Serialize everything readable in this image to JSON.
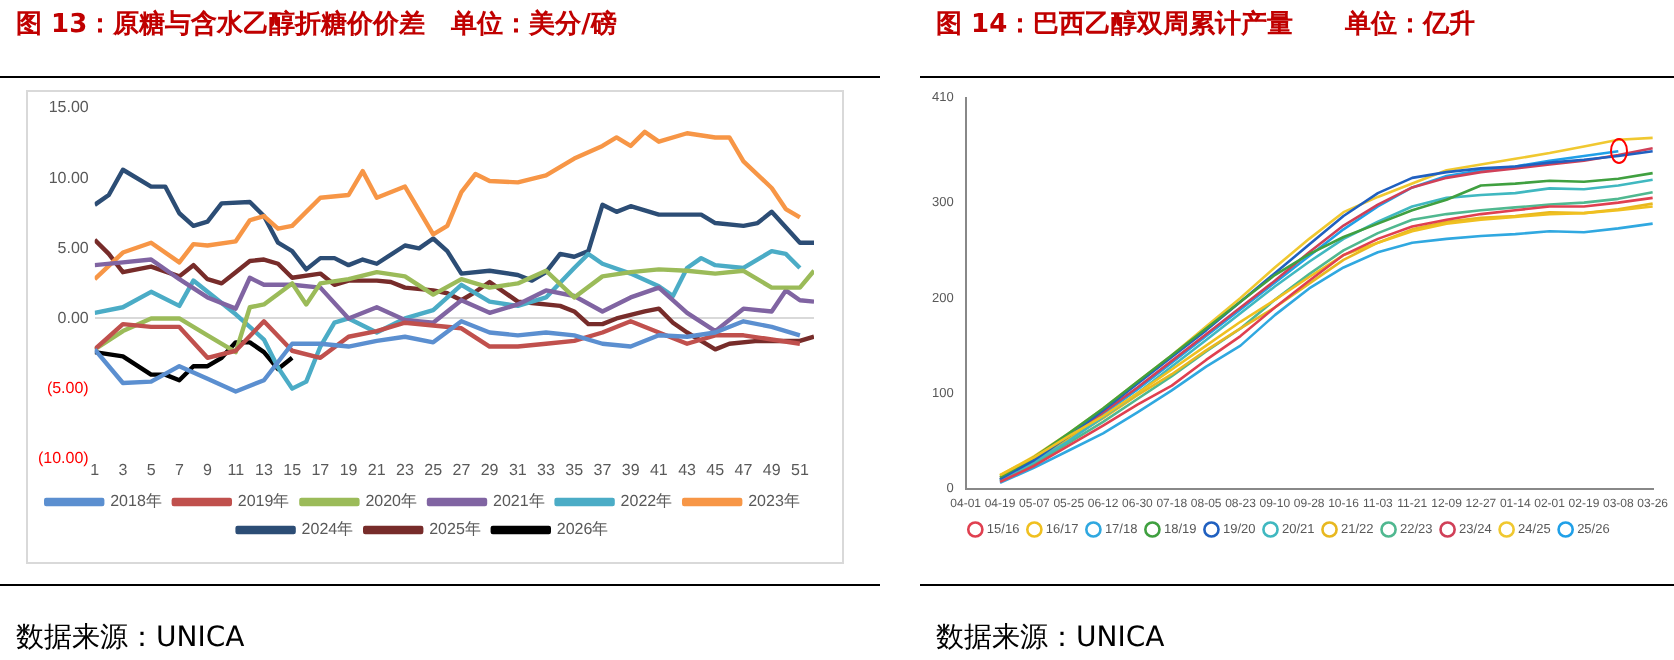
{
  "chart_data": [
    {
      "type": "line",
      "title": "图 13：原糖与含水乙醇折糖价价差　单位：美分/磅",
      "annotations": [
        "数据来源：UNICA"
      ],
      "xlim": [
        1,
        52
      ],
      "xticks": [
        1,
        3,
        5,
        7,
        9,
        11,
        13,
        15,
        17,
        19,
        21,
        23,
        25,
        27,
        29,
        31,
        33,
        35,
        37,
        39,
        41,
        43,
        45,
        47,
        49,
        51
      ],
      "ylim": [
        -10,
        15
      ],
      "yticks": [
        {
          "value": -10,
          "label": "(10.00)"
        },
        {
          "value": -5,
          "label": "(5.00)"
        },
        {
          "value": 0,
          "label": "0.00"
        },
        {
          "value": 5,
          "label": "5.00"
        },
        {
          "value": 10,
          "label": "10.00"
        },
        {
          "value": 15,
          "label": "15.00"
        }
      ],
      "legend": "bottom",
      "marker": "none",
      "series": [
        {
          "name": "2018年",
          "color": "#5b8fd0",
          "x": [
            1,
            3,
            5,
            7,
            9,
            11,
            13,
            15,
            17,
            19,
            21,
            23,
            25,
            27,
            29,
            31,
            33,
            35,
            37,
            39,
            41,
            43,
            45,
            47,
            49,
            51
          ],
          "values": [
            -2.2,
            -4.6,
            -4.5,
            -3.4,
            -4.3,
            -5.2,
            -4.4,
            -1.8,
            -1.8,
            -2.0,
            -1.6,
            -1.3,
            -1.7,
            -0.2,
            -1.0,
            -1.2,
            -1.0,
            -1.2,
            -1.8,
            -2.0,
            -1.2,
            -1.3,
            -1.0,
            -0.2,
            -0.6,
            -1.2
          ]
        },
        {
          "name": "2019年",
          "color": "#c0504d",
          "x": [
            1,
            3,
            5,
            7,
            9,
            11,
            13,
            15,
            17,
            19,
            21,
            23,
            25,
            27,
            29,
            31,
            33,
            35,
            37,
            39,
            41,
            43,
            45,
            47,
            49,
            51
          ],
          "values": [
            -2.2,
            -0.4,
            -0.6,
            -0.6,
            -2.8,
            -2.3,
            -0.2,
            -2.3,
            -2.8,
            -1.3,
            -0.9,
            -0.3,
            -0.5,
            -0.7,
            -2.0,
            -2.0,
            -1.8,
            -1.6,
            -1.0,
            -0.2,
            -1.0,
            -1.8,
            -1.2,
            -1.2,
            -1.5,
            -1.8
          ]
        },
        {
          "name": "2020年",
          "color": "#9bbb59",
          "x": [
            1,
            3,
            5,
            7,
            9,
            11,
            12,
            13,
            15,
            16,
            17,
            19,
            21,
            23,
            25,
            27,
            29,
            31,
            33,
            35,
            37,
            39,
            41,
            43,
            45,
            47,
            49,
            51,
            52
          ],
          "values": [
            -2.2,
            -0.9,
            0,
            0,
            -1.2,
            -2.4,
            0.8,
            1.0,
            2.5,
            1.0,
            2.5,
            2.8,
            3.3,
            3.0,
            1.7,
            2.8,
            2.2,
            2.5,
            3.4,
            1.5,
            3.0,
            3.3,
            3.5,
            3.4,
            3.2,
            3.4,
            2.2,
            2.2,
            3.4
          ]
        },
        {
          "name": "2021年",
          "color": "#8064a2",
          "x": [
            1,
            3,
            5,
            7,
            9,
            11,
            12,
            13,
            15,
            17,
            19,
            21,
            23,
            25,
            27,
            29,
            31,
            33,
            35,
            37,
            39,
            41,
            43,
            45,
            47,
            49,
            50,
            51,
            52
          ],
          "values": [
            3.8,
            4.0,
            4.2,
            2.8,
            1.5,
            0.7,
            2.9,
            2.4,
            2.4,
            2.2,
            0.0,
            0.8,
            -0.1,
            -0.3,
            1.3,
            0.4,
            1.0,
            2.0,
            1.6,
            0.5,
            1.5,
            2.2,
            0.4,
            -0.9,
            0.7,
            0.5,
            2.0,
            1.3,
            1.2
          ]
        },
        {
          "name": "2022年",
          "color": "#4bacc6",
          "x": [
            1,
            3,
            5,
            7,
            8,
            9,
            11,
            13,
            14,
            15,
            16,
            17,
            18,
            19,
            21,
            23,
            25,
            27,
            29,
            31,
            33,
            35,
            36,
            37,
            39,
            41,
            42,
            43,
            44,
            45,
            47,
            49,
            50,
            51
          ],
          "values": [
            0.4,
            0.8,
            1.9,
            0.9,
            2.7,
            1.9,
            0.3,
            -1.5,
            -3.5,
            -5.0,
            -4.5,
            -2.0,
            -0.3,
            0.0,
            -1.0,
            0.0,
            0.6,
            2.4,
            1.2,
            0.9,
            1.5,
            3.6,
            4.6,
            3.9,
            3.2,
            2.3,
            1.6,
            3.6,
            4.3,
            3.8,
            3.6,
            4.8,
            4.6,
            3.6
          ]
        },
        {
          "name": "2023年",
          "color": "#f79646",
          "x": [
            1,
            3,
            5,
            7,
            8,
            9,
            11,
            12,
            13,
            14,
            15,
            17,
            19,
            20,
            21,
            23,
            25,
            26,
            27,
            28,
            29,
            31,
            33,
            35,
            37,
            38,
            39,
            40,
            41,
            43,
            45,
            46,
            47,
            49,
            50,
            51
          ],
          "values": [
            2.8,
            4.7,
            5.4,
            4.0,
            5.3,
            5.2,
            5.5,
            7.0,
            7.3,
            6.4,
            6.6,
            8.6,
            8.8,
            10.5,
            8.6,
            9.4,
            6.0,
            6.6,
            9.0,
            10.3,
            9.8,
            9.7,
            10.2,
            11.4,
            12.3,
            12.9,
            12.3,
            13.3,
            12.6,
            13.2,
            12.9,
            12.9,
            11.2,
            9.3,
            7.8,
            7.2
          ]
        },
        {
          "name": "2024年",
          "color": "#2c4d75",
          "x": [
            1,
            2,
            3,
            5,
            6,
            7,
            8,
            9,
            10,
            12,
            13,
            14,
            15,
            16,
            17,
            18,
            19,
            20,
            21,
            23,
            24,
            25,
            26,
            27,
            29,
            31,
            32,
            33,
            34,
            35,
            36,
            37,
            38,
            39,
            41,
            44,
            45,
            47,
            48,
            49,
            50,
            51,
            52
          ],
          "values": [
            8.1,
            8.8,
            10.6,
            9.4,
            9.4,
            7.5,
            6.6,
            6.9,
            8.2,
            8.3,
            7.3,
            5.4,
            4.8,
            3.5,
            4.3,
            4.3,
            3.8,
            4.2,
            3.9,
            5.2,
            5.0,
            5.7,
            4.8,
            3.2,
            3.4,
            3.1,
            2.7,
            3.3,
            4.6,
            4.4,
            4.8,
            8.1,
            7.6,
            8.0,
            7.4,
            7.4,
            6.8,
            6.6,
            6.8,
            7.6,
            6.5,
            5.4,
            5.4
          ]
        },
        {
          "name": "2025年",
          "color": "#772c2a",
          "x": [
            1,
            2,
            3,
            5,
            7,
            8,
            9,
            10,
            11,
            12,
            13,
            14,
            15,
            17,
            18,
            19,
            21,
            22,
            23,
            25,
            26,
            27,
            28,
            29,
            31,
            32,
            34,
            35,
            36,
            37,
            38,
            40,
            41,
            42,
            43,
            44,
            45,
            46,
            48,
            50,
            51,
            52
          ],
          "values": [
            5.6,
            4.6,
            3.3,
            3.7,
            3.0,
            3.8,
            2.8,
            2.5,
            3.3,
            4.1,
            4.2,
            3.9,
            2.9,
            3.2,
            2.4,
            2.7,
            2.7,
            2.6,
            2.2,
            2.0,
            1.8,
            1.3,
            1.9,
            2.6,
            1.2,
            1.1,
            0.9,
            0.5,
            -0.4,
            -0.4,
            0.0,
            0.5,
            0.7,
            -0.3,
            -1.0,
            -1.6,
            -2.2,
            -1.8,
            -1.6,
            -1.6,
            -1.6,
            -1.3
          ]
        },
        {
          "name": "2026年",
          "color": "#000000",
          "x": [
            1,
            3,
            5,
            6,
            7,
            8,
            9,
            10,
            11,
            12,
            13,
            14,
            15
          ],
          "values": [
            -2.4,
            -2.7,
            -4.0,
            -4.0,
            -4.4,
            -3.4,
            -3.4,
            -2.8,
            -1.7,
            -1.7,
            -2.4,
            -3.6,
            -2.8
          ]
        }
      ]
    },
    {
      "type": "line",
      "title": "图 14：巴西乙醇双周累计产量　　单位：亿升",
      "annotations": [
        "数据来源：UNICA"
      ],
      "categories": [
        "04-01",
        "04-19",
        "05-07",
        "05-25",
        "06-12",
        "06-30",
        "07-18",
        "08-05",
        "08-23",
        "09-10",
        "09-28",
        "10-16",
        "11-03",
        "11-21",
        "12-09",
        "12-27",
        "01-14",
        "02-01",
        "02-19",
        "03-08",
        "03-26"
      ],
      "ylim": [
        0,
        410
      ],
      "yticks": [
        0,
        100,
        200,
        300,
        410
      ],
      "legend": "bottom",
      "marker": "none",
      "series": [
        {
          "name": "15/16",
          "color": "#e04050",
          "values": [
            null,
            7,
            24,
            45,
            66,
            88,
            108,
            135,
            160,
            190,
            218,
            245,
            262,
            275,
            282,
            288,
            292,
            296,
            296,
            300,
            305
          ]
        },
        {
          "name": "16/17",
          "color": "#f0c020",
          "values": [
            null,
            14,
            33,
            55,
            76,
            100,
            125,
            150,
            175,
            198,
            222,
            245,
            258,
            270,
            278,
            282,
            285,
            288,
            289,
            292,
            296
          ]
        },
        {
          "name": "17/18",
          "color": "#30a8e0",
          "values": [
            null,
            6,
            22,
            40,
            58,
            80,
            103,
            128,
            150,
            182,
            210,
            232,
            248,
            258,
            262,
            265,
            267,
            270,
            269,
            273,
            278
          ]
        },
        {
          "name": "18/19",
          "color": "#40a040",
          "values": [
            null,
            12,
            33,
            58,
            84,
            112,
            140,
            168,
            196,
            224,
            246,
            264,
            278,
            292,
            303,
            318,
            320,
            323,
            322,
            325,
            331
          ]
        },
        {
          "name": "19/20",
          "color": "#2060c0",
          "values": [
            null,
            10,
            30,
            55,
            82,
            110,
            138,
            166,
            196,
            226,
            256,
            286,
            310,
            326,
            332,
            336,
            338,
            342,
            345,
            349,
            354
          ]
        },
        {
          "name": "20/21",
          "color": "#40b8c0",
          "values": [
            null,
            8,
            28,
            50,
            75,
            100,
            128,
            156,
            184,
            212,
            238,
            262,
            280,
            296,
            305,
            308,
            310,
            315,
            314,
            318,
            324
          ]
        },
        {
          "name": "21/22",
          "color": "#e8b820",
          "values": [
            null,
            12,
            30,
            52,
            74,
            98,
            120,
            145,
            168,
            190,
            215,
            240,
            258,
            272,
            280,
            284,
            286,
            290,
            289,
            293,
            299
          ]
        },
        {
          "name": "22/23",
          "color": "#50b890",
          "values": [
            null,
            8,
            26,
            48,
            70,
            94,
            118,
            144,
            168,
            198,
            225,
            250,
            268,
            282,
            288,
            292,
            295,
            298,
            300,
            304,
            311
          ]
        },
        {
          "name": "23/24",
          "color": "#d04058",
          "values": [
            null,
            10,
            30,
            54,
            80,
            106,
            134,
            162,
            190,
            218,
            248,
            276,
            298,
            316,
            326,
            332,
            336,
            340,
            344,
            350,
            357
          ]
        },
        {
          "name": "24/25",
          "color": "#f0c830",
          "values": [
            null,
            14,
            34,
            58,
            84,
            112,
            140,
            170,
            200,
            232,
            262,
            290,
            306,
            320,
            334,
            340,
            346,
            352,
            359,
            366,
            368
          ]
        },
        {
          "name": "25/26",
          "color": "#20a0e8",
          "values": [
            null,
            9,
            28,
            52,
            78,
            104,
            132,
            160,
            188,
            216,
            244,
            272,
            296,
            316,
            328,
            334,
            338,
            344,
            349,
            354,
            null
          ]
        }
      ]
    }
  ]
}
